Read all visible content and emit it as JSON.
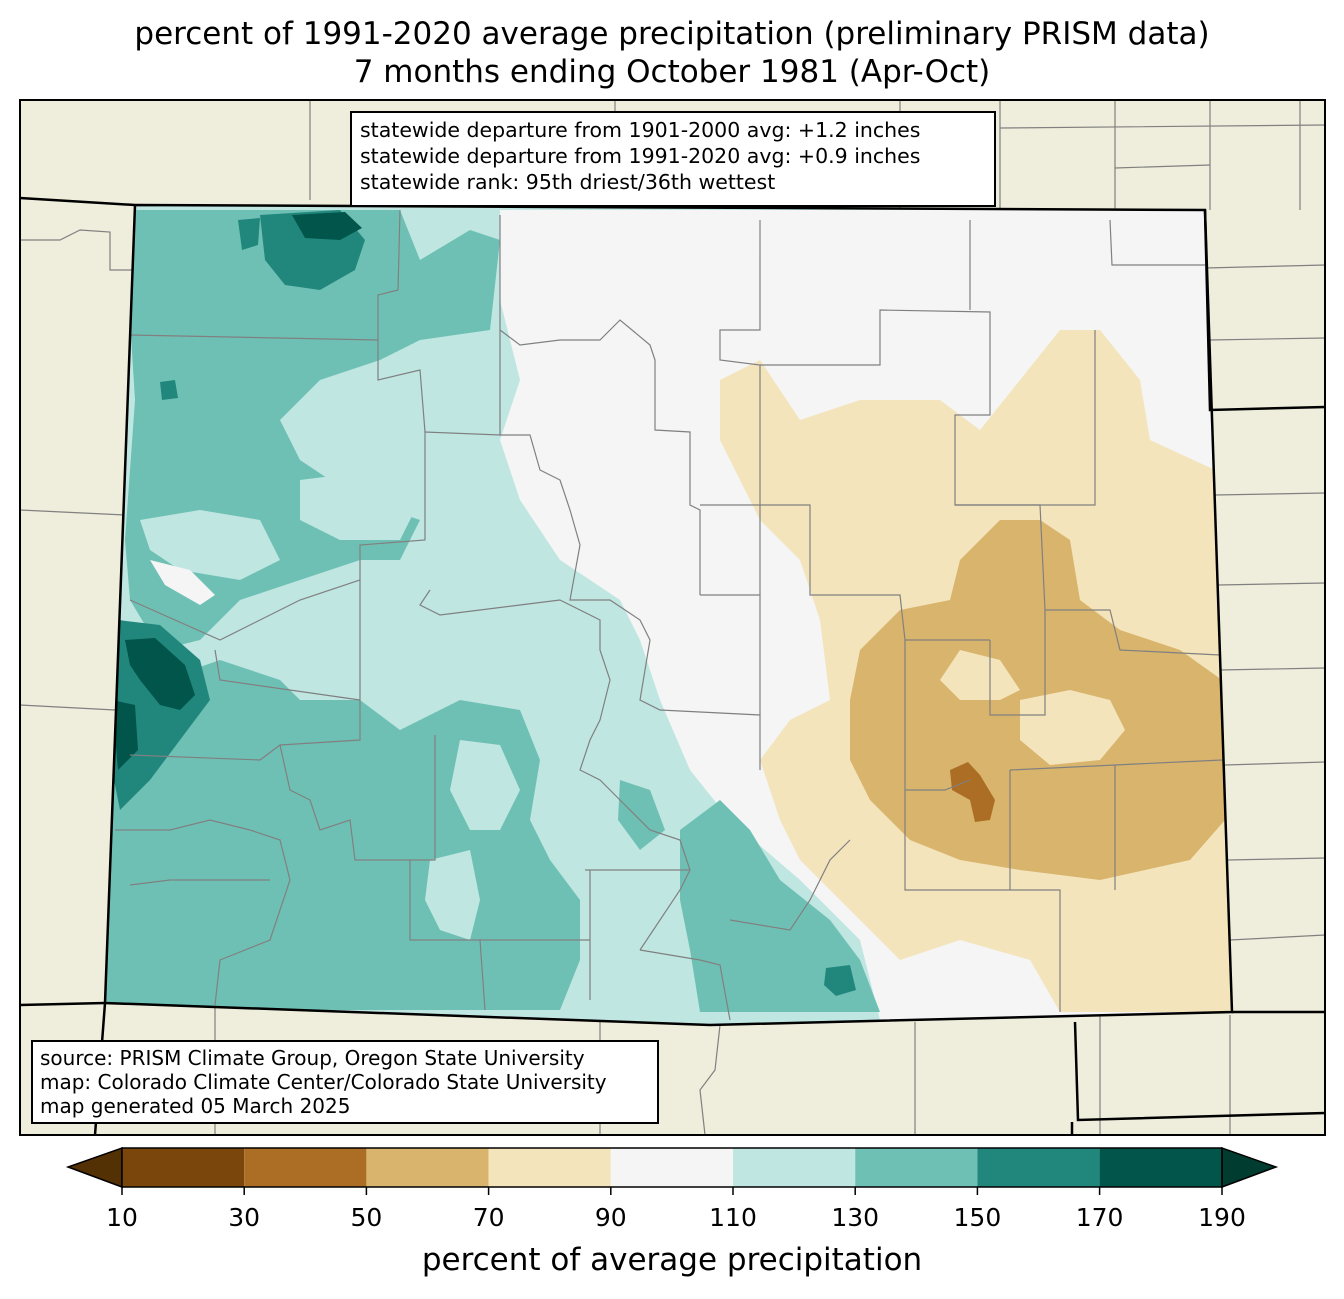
{
  "title": {
    "line1": "percent of 1991-2020 average precipitation (preliminary PRISM data)",
    "line2": "7 months ending October 1981 (Apr-Oct)"
  },
  "stats_box": {
    "line1": "statewide departure from 1901-2000 avg: +1.2 inches",
    "line2": "statewide departure from 1991-2020 avg: +0.9 inches",
    "line3": "statewide rank: 95th driest/36th wettest"
  },
  "source_box": {
    "line1": "source: PRISM Climate Group, Oregon State University",
    "line2": "map: Colorado Climate Center/Colorado State University",
    "line3": "map generated 05 March 2025"
  },
  "colorbar": {
    "label": "percent of average precipitation",
    "ticks": [
      "10",
      "30",
      "50",
      "70",
      "90",
      "110",
      "130",
      "150",
      "170",
      "190"
    ],
    "colors": [
      "#543005",
      "#7a460c",
      "#ab6e24",
      "#d9b46d",
      "#f4e4bc",
      "#f4f5f4",
      "#bfe6e1",
      "#6fc0b4",
      "#21877d",
      "#01554a",
      "#003c30"
    ]
  },
  "map_colors": {
    "land_outside": "#efeddc",
    "state_border": "#000000",
    "county_lines": "#808080"
  }
}
